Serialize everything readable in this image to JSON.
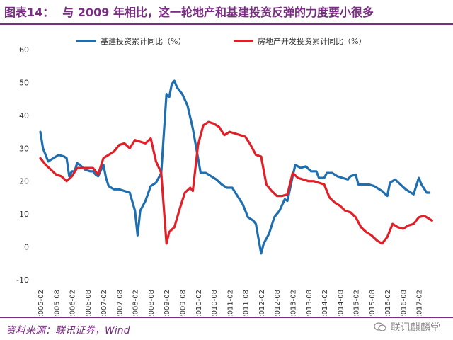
{
  "header": {
    "figure_label": "图表14：",
    "title": "与 2009 年相比，这一轮地产和基建投资反弹的力度要小很多"
  },
  "footer": {
    "source": "资料来源：联讯证券，Wind",
    "watermark": "联讯麒麟堂"
  },
  "colors": {
    "accent": "#7b2c84",
    "infra": "#1f6fb0",
    "property": "#e11f26"
  },
  "chart_data": {
    "type": "line",
    "ylim": [
      -10,
      60
    ],
    "yticks": [
      -10,
      0,
      10,
      20,
      30,
      40,
      50,
      60
    ],
    "xticks": [
      "2005-02",
      "2005-08",
      "2006-02",
      "2006-08",
      "2007-02",
      "2007-08",
      "2008-02",
      "2008-08",
      "2009-02",
      "2009-08",
      "2010-02",
      "2010-08",
      "2011-02",
      "2011-08",
      "2012-02",
      "2012-08",
      "2013-02",
      "2013-08",
      "2014-02",
      "2014-08",
      "2015-02",
      "2015-08",
      "2016-02",
      "2016-08",
      "2017-02"
    ],
    "x_start": "2005-02",
    "legend_position": "top",
    "series": [
      {
        "name": "基建投资累计同比（%）",
        "color": "#1f6fb0",
        "points": [
          [
            "2005-02",
            35
          ],
          [
            "2005-03",
            30
          ],
          [
            "2005-05",
            26
          ],
          [
            "2005-07",
            27
          ],
          [
            "2005-09",
            28
          ],
          [
            "2005-11",
            27.5
          ],
          [
            "2005-12",
            27
          ],
          [
            "2006-01",
            21.5
          ],
          [
            "2006-02",
            23
          ],
          [
            "2006-03",
            23
          ],
          [
            "2006-04",
            25.5
          ],
          [
            "2006-05",
            25
          ],
          [
            "2006-07",
            23.5
          ],
          [
            "2006-09",
            23
          ],
          [
            "2006-10",
            23
          ],
          [
            "2006-11",
            22
          ],
          [
            "2006-12",
            21.5
          ],
          [
            "2007-02",
            25
          ],
          [
            "2007-03",
            21
          ],
          [
            "2007-04",
            18.5
          ],
          [
            "2007-06",
            17.5
          ],
          [
            "2007-08",
            17.5
          ],
          [
            "2007-10",
            17
          ],
          [
            "2007-12",
            16.5
          ],
          [
            "2008-02",
            11
          ],
          [
            "2008-03",
            3.5
          ],
          [
            "2008-04",
            11
          ],
          [
            "2008-06",
            14
          ],
          [
            "2008-08",
            18.5
          ],
          [
            "2008-10",
            19.5
          ],
          [
            "2008-12",
            22.5
          ],
          [
            "2009-02",
            46.5
          ],
          [
            "2009-03",
            45.5
          ],
          [
            "2009-04",
            49.5
          ],
          [
            "2009-05",
            50.5
          ],
          [
            "2009-06",
            48.5
          ],
          [
            "2009-08",
            46.5
          ],
          [
            "2009-10",
            43
          ],
          [
            "2009-12",
            36
          ],
          [
            "2010-02",
            27
          ],
          [
            "2010-03",
            22.5
          ],
          [
            "2010-05",
            22.5
          ],
          [
            "2010-07",
            21.5
          ],
          [
            "2010-09",
            20.5
          ],
          [
            "2010-11",
            19
          ],
          [
            "2011-01",
            18
          ],
          [
            "2011-03",
            18
          ],
          [
            "2011-05",
            15.5
          ],
          [
            "2011-07",
            13
          ],
          [
            "2011-09",
            9
          ],
          [
            "2011-11",
            8
          ],
          [
            "2011-12",
            7
          ],
          [
            "2012-02",
            -2
          ],
          [
            "2012-03",
            1
          ],
          [
            "2012-05",
            4
          ],
          [
            "2012-07",
            9
          ],
          [
            "2012-09",
            11
          ],
          [
            "2012-11",
            14.5
          ],
          [
            "2012-12",
            14
          ],
          [
            "2013-02",
            21.5
          ],
          [
            "2013-03",
            25
          ],
          [
            "2013-05",
            24
          ],
          [
            "2013-07",
            24.5
          ],
          [
            "2013-09",
            23
          ],
          [
            "2013-11",
            23
          ],
          [
            "2013-12",
            21
          ],
          [
            "2014-02",
            21
          ],
          [
            "2014-03",
            22.5
          ],
          [
            "2014-05",
            22.5
          ],
          [
            "2014-07",
            21.5
          ],
          [
            "2014-09",
            21
          ],
          [
            "2014-11",
            20.5
          ],
          [
            "2014-12",
            21.5
          ],
          [
            "2015-02",
            22
          ],
          [
            "2015-03",
            19
          ],
          [
            "2015-05",
            19
          ],
          [
            "2015-07",
            19
          ],
          [
            "2015-09",
            18.5
          ],
          [
            "2015-11",
            17.5
          ],
          [
            "2015-12",
            17
          ],
          [
            "2016-02",
            15.5
          ],
          [
            "2016-03",
            19.5
          ],
          [
            "2016-05",
            20.5
          ],
          [
            "2016-07",
            19
          ],
          [
            "2016-09",
            17.5
          ],
          [
            "2016-11",
            16.5
          ],
          [
            "2016-12",
            16
          ],
          [
            "2017-02",
            21
          ],
          [
            "2017-03",
            19
          ],
          [
            "2017-05",
            16.5
          ],
          [
            "2017-06",
            16.5
          ]
        ]
      },
      {
        "name": "房地产开发投资累计同比（%）",
        "color": "#e11f26",
        "points": [
          [
            "2005-02",
            27
          ],
          [
            "2005-04",
            25
          ],
          [
            "2005-06",
            23.5
          ],
          [
            "2005-08",
            22
          ],
          [
            "2005-10",
            21.5
          ],
          [
            "2005-12",
            20
          ],
          [
            "2006-02",
            21.5
          ],
          [
            "2006-04",
            24
          ],
          [
            "2006-06",
            24
          ],
          [
            "2006-08",
            24
          ],
          [
            "2006-10",
            24
          ],
          [
            "2006-12",
            22
          ],
          [
            "2007-02",
            27
          ],
          [
            "2007-04",
            28
          ],
          [
            "2007-06",
            29
          ],
          [
            "2007-08",
            31
          ],
          [
            "2007-10",
            31.5
          ],
          [
            "2007-12",
            30
          ],
          [
            "2008-02",
            32.5
          ],
          [
            "2008-04",
            32
          ],
          [
            "2008-06",
            31.5
          ],
          [
            "2008-08",
            33
          ],
          [
            "2008-10",
            26
          ],
          [
            "2008-12",
            22.5
          ],
          [
            "2009-02",
            1
          ],
          [
            "2009-03",
            4.5
          ],
          [
            "2009-05",
            6
          ],
          [
            "2009-07",
            11.5
          ],
          [
            "2009-09",
            16.5
          ],
          [
            "2009-11",
            18
          ],
          [
            "2009-12",
            17
          ],
          [
            "2010-02",
            31
          ],
          [
            "2010-04",
            37
          ],
          [
            "2010-06",
            38
          ],
          [
            "2010-08",
            37.5
          ],
          [
            "2010-10",
            36.5
          ],
          [
            "2010-12",
            34
          ],
          [
            "2011-02",
            35
          ],
          [
            "2011-04",
            34.5
          ],
          [
            "2011-06",
            34
          ],
          [
            "2011-08",
            33.5
          ],
          [
            "2011-10",
            31
          ],
          [
            "2011-12",
            28
          ],
          [
            "2012-02",
            27.5
          ],
          [
            "2012-04",
            19
          ],
          [
            "2012-06",
            17
          ],
          [
            "2012-08",
            15.5
          ],
          [
            "2012-10",
            15.5
          ],
          [
            "2012-12",
            16
          ],
          [
            "2013-02",
            22.5
          ],
          [
            "2013-04",
            21
          ],
          [
            "2013-06",
            20.5
          ],
          [
            "2013-08",
            20
          ],
          [
            "2013-10",
            20
          ],
          [
            "2013-12",
            19.5
          ],
          [
            "2014-02",
            19
          ],
          [
            "2014-04",
            15
          ],
          [
            "2014-06",
            13.5
          ],
          [
            "2014-08",
            12.5
          ],
          [
            "2014-10",
            11
          ],
          [
            "2014-12",
            10.5
          ],
          [
            "2015-02",
            9
          ],
          [
            "2015-04",
            6
          ],
          [
            "2015-06",
            4.5
          ],
          [
            "2015-08",
            3.5
          ],
          [
            "2015-10",
            2
          ],
          [
            "2015-12",
            1
          ],
          [
            "2016-02",
            3
          ],
          [
            "2016-04",
            7
          ],
          [
            "2016-06",
            6
          ],
          [
            "2016-08",
            5.5
          ],
          [
            "2016-10",
            6.5
          ],
          [
            "2016-12",
            7
          ],
          [
            "2017-02",
            9
          ],
          [
            "2017-04",
            9.5
          ],
          [
            "2017-06",
            8.5
          ],
          [
            "2017-07",
            8
          ]
        ]
      }
    ]
  }
}
